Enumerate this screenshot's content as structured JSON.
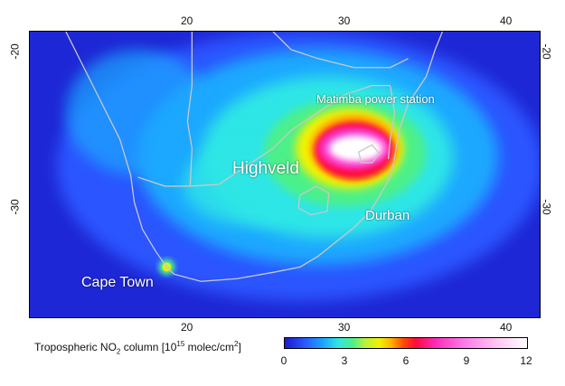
{
  "map": {
    "lon_ticks": [
      "20",
      "30",
      "40"
    ],
    "lat_ticks": [
      "-20",
      "-30"
    ],
    "places": {
      "matimba": "Matimba power station",
      "highveld": "Highveld",
      "durban": "Durban",
      "cape_town": "Cape Town"
    }
  },
  "legend": {
    "title_prefix": "Tropospheric NO",
    "title_sub": "2",
    "title_mid": " column  [10",
    "title_sup": "15",
    "title_suffix": " molec/cm",
    "title_sup2": "2",
    "title_end": "]",
    "ticks": [
      "0",
      "3",
      "6",
      "9",
      "12"
    ]
  },
  "colors": {
    "background_low": "#1a1acc",
    "outline": "#c8c8c8",
    "hotspot": "#ffffff"
  }
}
